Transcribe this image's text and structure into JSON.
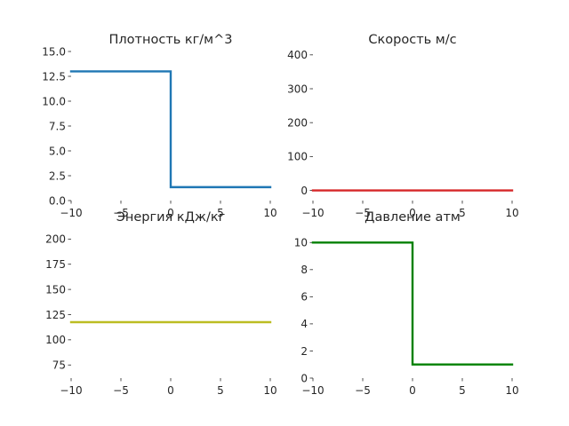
{
  "chart_data": [
    {
      "type": "line",
      "title": "Плотность кг/м^3",
      "xlim": [
        -10,
        10
      ],
      "ylim": [
        0,
        15
      ],
      "xticks": [
        -10,
        -5,
        0,
        5,
        10
      ],
      "xtick_labels": [
        "−10",
        "−5",
        "0",
        "5",
        "10"
      ],
      "yticks": [
        0,
        2.5,
        5,
        7.5,
        10,
        12.5,
        15
      ],
      "ytick_labels": [
        "0.0",
        "2.5",
        "5.0",
        "7.5",
        "10.0",
        "12.5",
        "15.0"
      ],
      "grid": false,
      "color": "#1f77b4",
      "series": [
        {
          "x": [
            -10,
            0,
            0,
            10
          ],
          "y": [
            13,
            13,
            1.35,
            1.35
          ]
        }
      ]
    },
    {
      "type": "line",
      "title": "Скорость м/с",
      "xlim": [
        -10,
        10
      ],
      "ylim": [
        -30,
        410
      ],
      "xticks": [
        -10,
        -5,
        0,
        5,
        10
      ],
      "xtick_labels": [
        "−10",
        "−5",
        "0",
        "5",
        "10"
      ],
      "yticks": [
        0,
        100,
        200,
        300,
        400
      ],
      "ytick_labels": [
        "0",
        "100",
        "200",
        "300",
        "400"
      ],
      "grid": false,
      "color": "#d62728",
      "series": [
        {
          "x": [
            -10,
            10
          ],
          "y": [
            0,
            0
          ]
        }
      ]
    },
    {
      "type": "line",
      "title": "Энергия кДж/кг",
      "xlim": [
        -10,
        10
      ],
      "ylim": [
        62,
        210
      ],
      "xticks": [
        -10,
        -5,
        0,
        5,
        10
      ],
      "xtick_labels": [
        "−10",
        "−5",
        "0",
        "5",
        "10"
      ],
      "yticks": [
        75,
        100,
        125,
        150,
        175,
        200
      ],
      "ytick_labels": [
        "75",
        "100",
        "125",
        "150",
        "175",
        "200"
      ],
      "grid": false,
      "color": "#bcbd22",
      "series": [
        {
          "x": [
            -10,
            10
          ],
          "y": [
            117.5,
            117.5
          ]
        }
      ]
    },
    {
      "type": "line",
      "title": "Давление атм",
      "xlim": [
        -10,
        10
      ],
      "ylim": [
        0,
        11
      ],
      "xticks": [
        -10,
        -5,
        0,
        5,
        10
      ],
      "xtick_labels": [
        "−10",
        "−5",
        "0",
        "5",
        "10"
      ],
      "yticks": [
        0,
        2,
        4,
        6,
        8,
        10
      ],
      "ytick_labels": [
        "0",
        "2",
        "4",
        "6",
        "8",
        "10"
      ],
      "grid": false,
      "color": "#008000",
      "series": [
        {
          "x": [
            -10,
            0,
            0,
            10
          ],
          "y": [
            10,
            10,
            1,
            1
          ]
        }
      ]
    }
  ]
}
